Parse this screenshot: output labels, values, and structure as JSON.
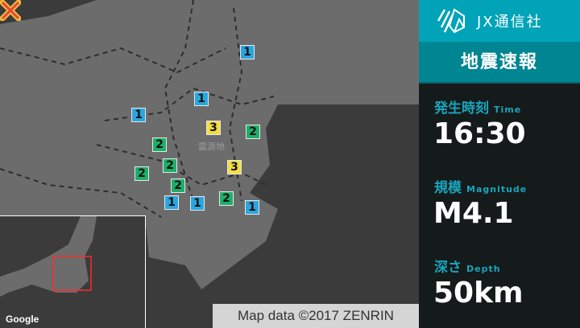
{
  "map": {
    "epicenter_label": "震源地",
    "intensity_markers": [
      "1",
      "1",
      "1",
      "3",
      "2",
      "2",
      "2",
      "2",
      "3",
      "2",
      "1",
      "1",
      "2",
      "1"
    ],
    "colors": {
      "intensity_1": "#2aa6df",
      "intensity_2": "#1fae69",
      "intensity_3": "#f2dd45",
      "epicenter": "#e8433a"
    },
    "google_logo": "Google",
    "attribution": "Map data ©2017 ZENRIN"
  },
  "panel": {
    "brand": "JX通信社",
    "title": "地震速報",
    "time": {
      "label": "発生時刻",
      "label_en": "Time",
      "value": "16:30"
    },
    "magnitude": {
      "label": "規模",
      "label_en": "Magnitude",
      "value": "M4.1"
    },
    "depth": {
      "label": "深さ",
      "label_en": "Depth",
      "value": "50km"
    }
  }
}
